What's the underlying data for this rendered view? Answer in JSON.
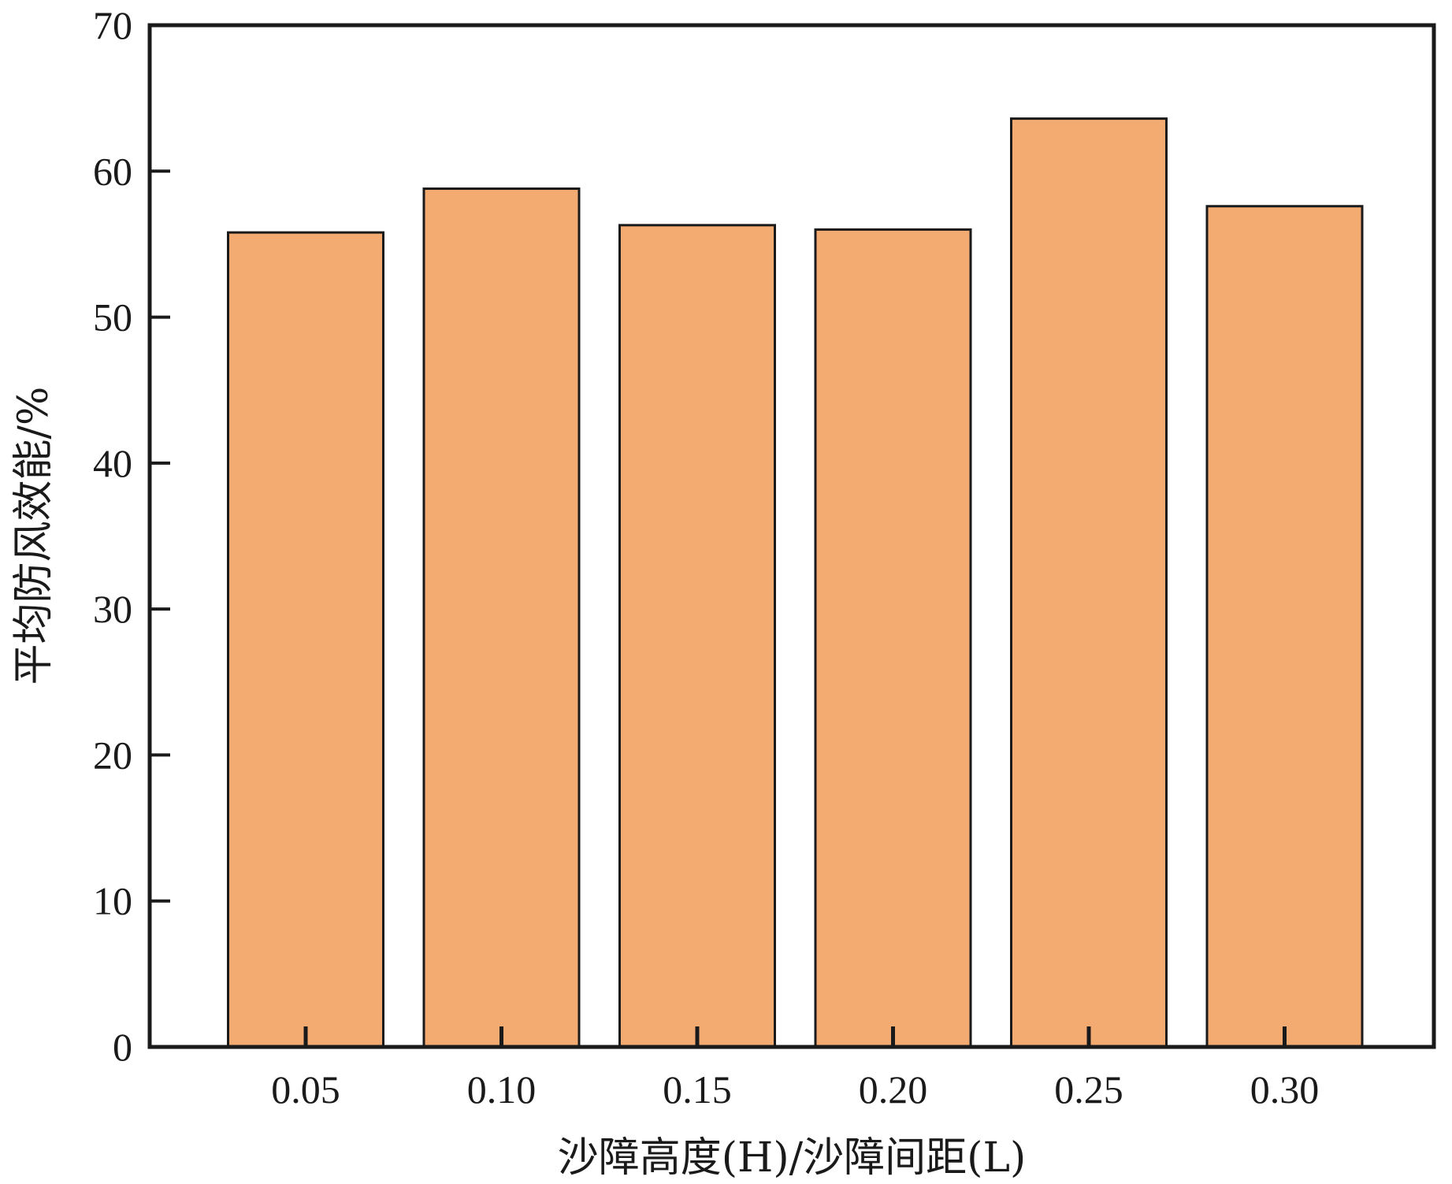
{
  "chart_data": {
    "type": "bar",
    "categories": [
      "0.05",
      "0.10",
      "0.15",
      "0.20",
      "0.25",
      "0.30"
    ],
    "values": [
      55.8,
      58.8,
      56.3,
      56.0,
      63.6,
      57.6
    ],
    "xlabel": "沙障高度(H)/沙障间距(L)",
    "ylabel": "平均防风效能/%",
    "ylim": [
      0,
      70
    ],
    "yticks": [
      "0",
      "10",
      "20",
      "30",
      "40",
      "50",
      "60",
      "70"
    ],
    "grid": false,
    "legend": "none",
    "bar_color": "#f4ab72",
    "bar_edge_color": "#1a1a1a"
  }
}
